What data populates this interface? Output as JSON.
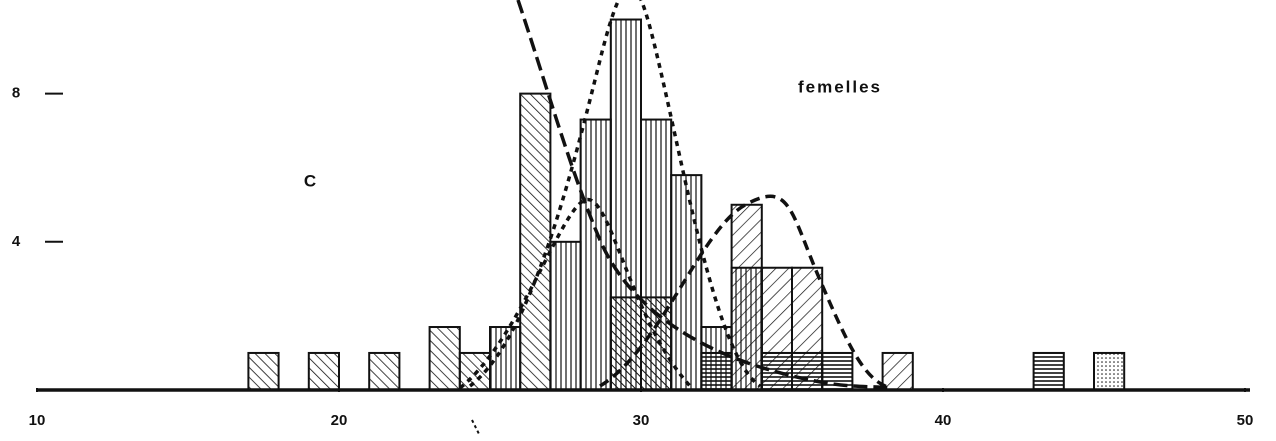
{
  "chart_data": {
    "type": "histogram",
    "title": "femelles",
    "annotations": [
      "C"
    ],
    "bins": [
      17,
      18,
      19,
      20,
      21,
      22,
      23,
      24,
      25,
      26,
      27,
      28,
      29,
      30,
      31,
      32,
      33,
      34,
      35,
      36,
      37,
      38,
      39,
      40,
      41,
      42,
      43,
      44,
      45,
      46
    ],
    "series": [
      {
        "pattern": "back-diagonal",
        "color": "#111111",
        "values": [
          1,
          0,
          1,
          0,
          1,
          0,
          1.7,
          1,
          0,
          8,
          0,
          0,
          0,
          0,
          0,
          0,
          0,
          0,
          0,
          0,
          0,
          0,
          0,
          0,
          0,
          0,
          0,
          0,
          0
        ]
      },
      {
        "pattern": "vertical",
        "color": "#111111",
        "values": [
          0,
          0,
          0,
          0,
          0,
          0,
          0,
          0,
          1.7,
          0,
          4,
          7.3,
          10,
          7.3,
          5.8,
          1.7,
          3.3,
          0,
          0,
          0,
          0,
          0,
          0,
          0,
          0,
          0,
          0,
          0,
          0
        ]
      },
      {
        "pattern": "forward-diagonal",
        "color": "#111111",
        "values": [
          0,
          0,
          0,
          0,
          0,
          0,
          0,
          0,
          0,
          0,
          0,
          0,
          0,
          0,
          0,
          0,
          5,
          3.3,
          3.3,
          0,
          0,
          1,
          0,
          0,
          0,
          0,
          0,
          0,
          0
        ]
      },
      {
        "pattern": "cross",
        "color": "#111111",
        "values": [
          0,
          0,
          0,
          0,
          0,
          0,
          0,
          0,
          0,
          0,
          0,
          0,
          2.5,
          2.5,
          0,
          0,
          0,
          0,
          0,
          0,
          0,
          0,
          0,
          0,
          0,
          0,
          0,
          0,
          0
        ]
      },
      {
        "pattern": "horizontal",
        "color": "#111111",
        "values": [
          0,
          0,
          0,
          0,
          0,
          0,
          0,
          0,
          0,
          0,
          0,
          0,
          0,
          0,
          0,
          1,
          0,
          1,
          1,
          1,
          0,
          0,
          0,
          0,
          0,
          0,
          1,
          0,
          0
        ]
      },
      {
        "pattern": "dotted",
        "color": "#111111",
        "values": [
          0,
          0,
          0,
          0,
          0,
          0,
          0,
          0,
          0,
          0,
          0,
          0,
          0,
          0,
          0,
          0,
          0,
          0,
          0,
          0,
          0,
          0,
          0,
          0,
          0,
          0,
          0,
          0,
          1
        ]
      }
    ],
    "xlim": [
      10,
      50
    ],
    "xticks": [
      10,
      20,
      30,
      40,
      50
    ],
    "ylim": [
      0,
      10.5
    ],
    "yticks": [
      4,
      8
    ]
  }
}
